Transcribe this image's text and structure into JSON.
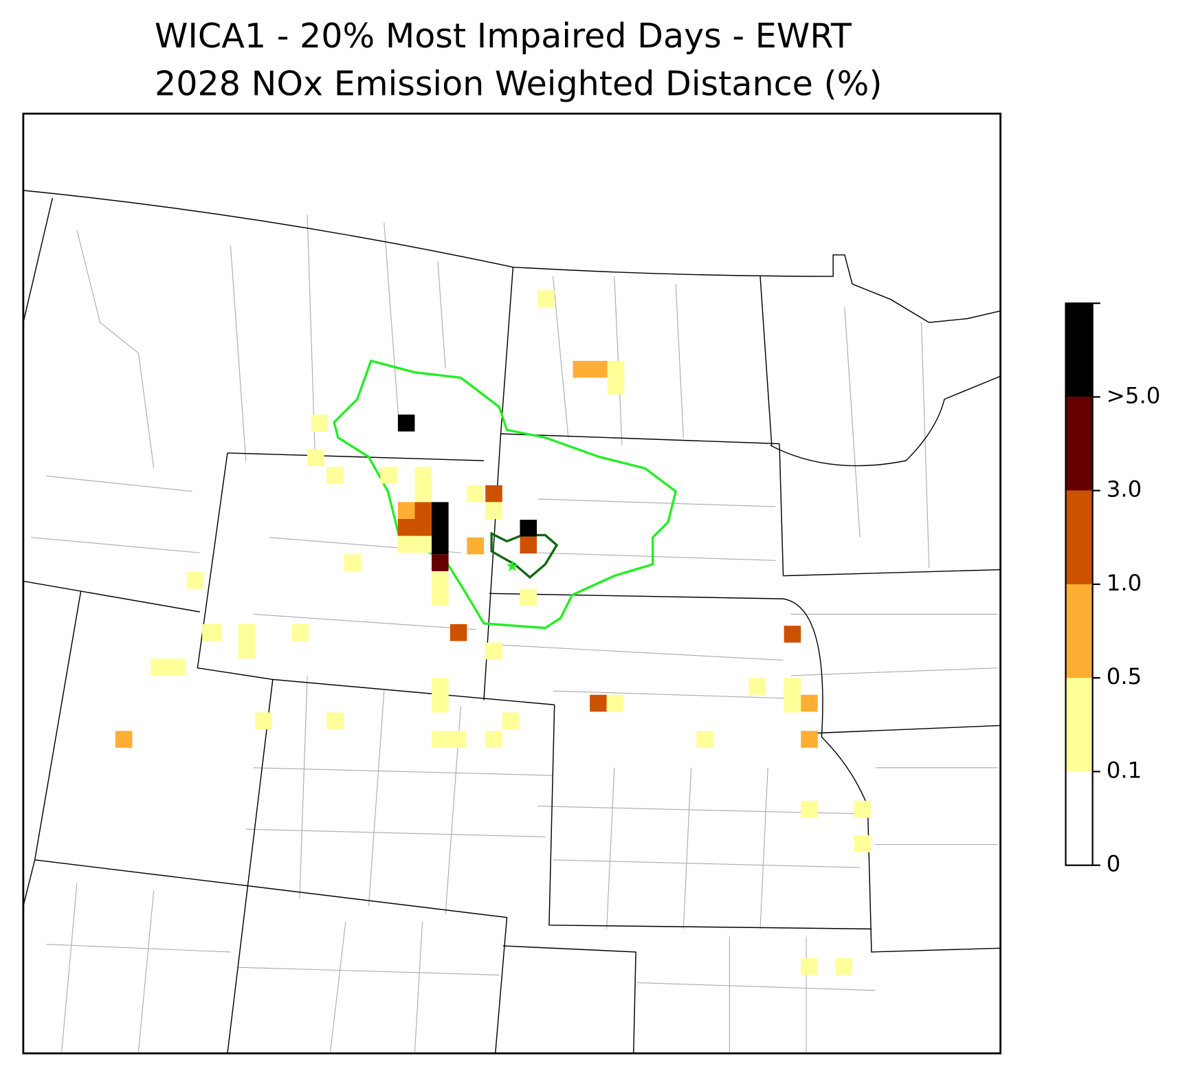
{
  "title": [
    "WICA1 - 20% Most Impaired Days - EWRT",
    "2028 NOx Emission Weighted Distance (%)"
  ],
  "colorbar": {
    "ticks": [
      0,
      0.1,
      0.5,
      {
        "value": 1,
        "label": "1.0"
      },
      {
        "value": 3,
        "label": "3.0"
      },
      {
        "value": 5,
        "label": ">5.0"
      }
    ],
    "colors": [
      "#ffffff",
      "#ffff99",
      "#fdae33",
      "#cc5200",
      "#660000",
      "#000000"
    ]
  }
}
